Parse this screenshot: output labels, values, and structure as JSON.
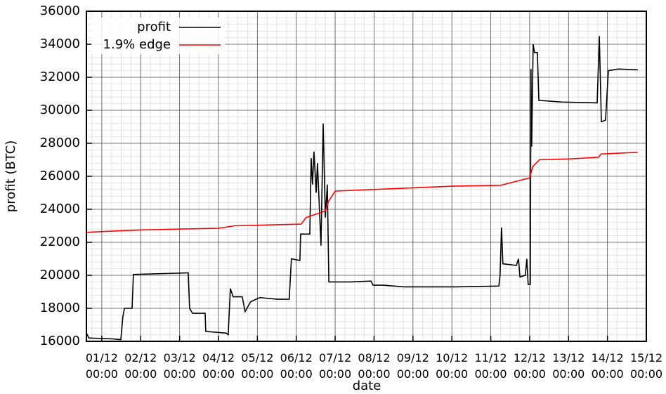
{
  "chart_data": {
    "type": "line",
    "xlabel": "date",
    "ylabel": "profit (BTC)",
    "xlim": [
      "30/11 14:30",
      "15/12 00:00"
    ],
    "xticks": [
      "01/12 00:00",
      "02/12 00:00",
      "03/12 00:00",
      "04/12 00:00",
      "05/12 00:00",
      "06/12 00:00",
      "07/12 00:00",
      "08/12 00:00",
      "09/12 00:00",
      "10/12 00:00",
      "11/12 00:00",
      "12/12 00:00",
      "13/12 00:00",
      "14/12 00:00",
      "15/12 00:00"
    ],
    "ylim": [
      16000,
      36000
    ],
    "yticks": [
      16000,
      18000,
      20000,
      22000,
      24000,
      26000,
      28000,
      30000,
      32000,
      34000,
      36000
    ],
    "grid": true,
    "minor_grid": true,
    "legend": "upper left",
    "series": [
      {
        "name": "profit",
        "color": "#000000",
        "x": [
          "30/11 14:30",
          "30/11 16:00",
          "01/12 06:30",
          "01/12 11:45",
          "01/12 13:00",
          "01/12 14:00",
          "01/12 18:40",
          "01/12 19:30",
          "03/12 05:20",
          "03/12 06:10",
          "03/12 08:00",
          "03/12 15:45",
          "03/12 16:10",
          "04/12 04:45",
          "04/12 06:00",
          "04/12 07:20",
          "04/12 09:00",
          "04/12 14:40",
          "04/12 16:25",
          "04/12 19:50",
          "05/12 01:30",
          "05/12 12:20",
          "05/12 19:40",
          "05/12 21:00",
          "06/12 02:15",
          "06/12 02:40",
          "06/12 08:20",
          "06/12 09:10",
          "06/12 10:00",
          "06/12 10:55",
          "06/12 12:15",
          "06/12 13:05",
          "06/12 15:15",
          "06/12 16:35",
          "06/12 17:55",
          "06/12 19:10",
          "06/12 20:05",
          "07/12 09:55",
          "07/12 22:05",
          "07/12 23:25",
          "08/12 05:25",
          "08/12 18:25",
          "10/12 02:55",
          "11/12 05:00",
          "11/12 05:45",
          "11/12 06:40",
          "11/12 07:30",
          "11/12 15:50",
          "11/12 17:05",
          "11/12 18:00",
          "11/12 21:20",
          "11/12 22:15",
          "11/12 23:05",
          "12/12 00:25",
          "12/12 00:50",
          "12/12 01:15",
          "12/12 02:10",
          "12/12 03:00",
          "12/12 04:45",
          "12/12 05:40",
          "12/12 20:00",
          "13/12 17:40",
          "13/12 19:00",
          "13/12 20:15",
          "13/12 22:50",
          "14/12 00:35",
          "14/12 06:40",
          "14/12 18:45"
        ],
        "values": [
          16500,
          16200,
          16150,
          16100,
          17500,
          18000,
          18000,
          20050,
          20150,
          18000,
          17700,
          17700,
          16600,
          16500,
          16400,
          19200,
          18700,
          18700,
          17800,
          18400,
          18650,
          18550,
          18550,
          21000,
          20900,
          22500,
          22500,
          27100,
          25500,
          27500,
          25000,
          26800,
          21800,
          29200,
          23500,
          25500,
          19600,
          19600,
          19650,
          19400,
          19400,
          19300,
          19300,
          19350,
          20000,
          22900,
          20700,
          20600,
          21000,
          19900,
          20000,
          21000,
          19450,
          19450,
          32500,
          27800,
          34000,
          33500,
          33500,
          30600,
          30500,
          30450,
          34500,
          29300,
          29400,
          32400,
          32500,
          32450
        ]
      },
      {
        "name": "1.9% edge",
        "color": "#ff0000",
        "x": [
          "30/11 14:30",
          "01/12 00:00",
          "02/12 00:00",
          "04/12 00:00",
          "04/12 10:00",
          "06/12 03:00",
          "06/12 06:00",
          "06/12 18:00",
          "06/12 20:00",
          "07/12 00:00",
          "10/12 00:00",
          "11/12 06:00",
          "11/12 12:00",
          "12/12 00:00",
          "12/12 02:00",
          "12/12 06:00",
          "13/12 00:00",
          "13/12 18:30",
          "13/12 20:00",
          "14/12 18:40"
        ],
        "values": [
          22600,
          22650,
          22750,
          22850,
          23000,
          23100,
          23500,
          23900,
          24500,
          25100,
          25400,
          25450,
          25600,
          25900,
          26600,
          27000,
          27050,
          27150,
          27350,
          27450
        ]
      }
    ]
  }
}
